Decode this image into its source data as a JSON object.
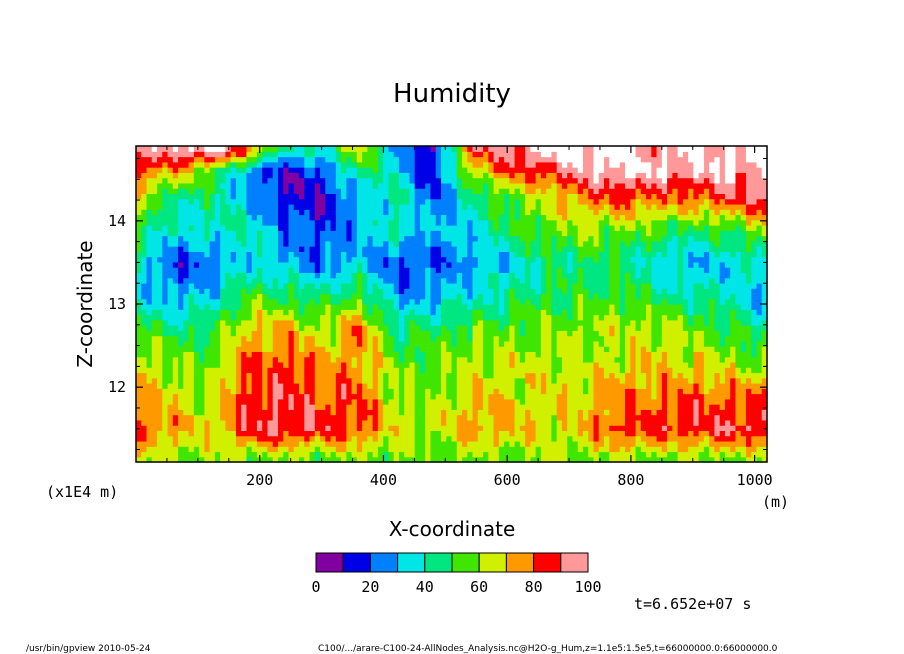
{
  "chart_data": {
    "type": "heatmap",
    "title": "Humidity",
    "xlabel": "X-coordinate",
    "ylabel": "Z-coordinate",
    "x_unit": "(m)",
    "y_scale_note": "(x1E4 m)",
    "xlim": [
      0,
      1020
    ],
    "ylim": [
      11.1,
      14.9
    ],
    "x_ticks": [
      200,
      400,
      600,
      800,
      1000
    ],
    "x_tick_labels": [
      "200",
      "400",
      "600",
      "800",
      "1000"
    ],
    "y_ticks": [
      12,
      13,
      14
    ],
    "y_tick_labels": [
      "12",
      "13",
      "14"
    ],
    "levels": [
      0,
      10,
      20,
      30,
      40,
      50,
      60,
      70,
      80,
      90,
      100
    ],
    "colorbar_labels": [
      "0",
      "20",
      "40",
      "60",
      "80",
      "100"
    ],
    "colors": [
      "#8000a0",
      "#0000e6",
      "#0080ff",
      "#00e6e6",
      "#00e680",
      "#40e600",
      "#d0f000",
      "#ff9900",
      "#ff0000",
      "#ff9999"
    ],
    "above_max_color": "#ffffff",
    "time_label": "t=6.652e+07 s",
    "x_samples": [
      0,
      60,
      120,
      180,
      240,
      300,
      360,
      420,
      480,
      540,
      600,
      660,
      720,
      780,
      840,
      900,
      960,
      1020
    ],
    "z_samples": [
      11.15,
      11.5,
      11.9,
      12.3,
      12.7,
      13.1,
      13.5,
      13.9,
      14.3,
      14.6,
      14.85
    ],
    "values": [
      [
        62,
        62,
        60,
        58,
        58,
        56,
        58,
        58,
        56,
        58,
        58,
        60,
        60,
        58,
        58,
        58,
        58,
        60
      ],
      [
        80,
        74,
        66,
        88,
        92,
        86,
        84,
        64,
        62,
        74,
        72,
        66,
        70,
        86,
        84,
        86,
        90,
        88
      ],
      [
        72,
        66,
        62,
        84,
        88,
        82,
        82,
        62,
        58,
        70,
        68,
        66,
        68,
        78,
        76,
        80,
        78,
        78
      ],
      [
        66,
        58,
        56,
        78,
        82,
        74,
        74,
        56,
        56,
        62,
        62,
        64,
        62,
        66,
        68,
        66,
        62,
        54
      ],
      [
        54,
        46,
        48,
        70,
        72,
        62,
        80,
        46,
        48,
        54,
        56,
        60,
        58,
        62,
        64,
        58,
        50,
        44
      ],
      [
        36,
        28,
        34,
        52,
        50,
        44,
        54,
        28,
        30,
        38,
        42,
        50,
        50,
        54,
        46,
        42,
        40,
        26
      ],
      [
        38,
        18,
        20,
        36,
        30,
        22,
        32,
        20,
        20,
        26,
        34,
        44,
        46,
        48,
        34,
        30,
        34,
        40
      ],
      [
        50,
        36,
        40,
        42,
        26,
        18,
        30,
        40,
        30,
        34,
        48,
        56,
        60,
        58,
        54,
        48,
        52,
        62
      ],
      [
        64,
        46,
        44,
        30,
        14,
        10,
        30,
        44,
        20,
        42,
        56,
        64,
        78,
        84,
        80,
        78,
        88,
        94
      ],
      [
        82,
        74,
        54,
        28,
        10,
        20,
        48,
        36,
        10,
        62,
        80,
        86,
        96,
        104,
        100,
        98,
        100,
        96
      ],
      [
        92,
        96,
        104,
        80,
        40,
        38,
        66,
        30,
        8,
        84,
        94,
        104,
        106,
        104,
        96,
        100,
        102,
        100
      ]
    ]
  },
  "footer": {
    "left": "/usr/bin/gpview   2010-05-24",
    "right": "C100/.../arare-C100-24-AllNodes_Analysis.nc@H2O-g_Hum,z=1.1e5:1.5e5,t=66000000.0:66000000.0"
  }
}
